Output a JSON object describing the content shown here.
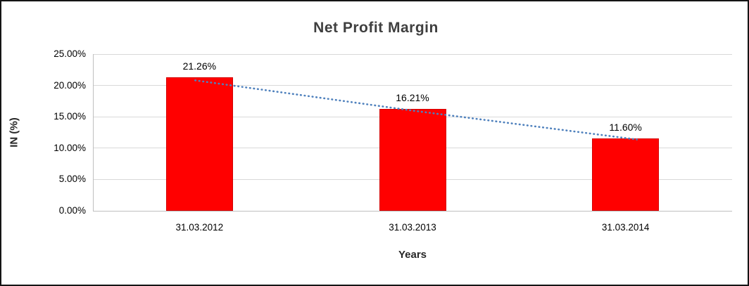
{
  "chart_data": {
    "type": "bar",
    "title": "Net Profit Margin",
    "xlabel": "Years",
    "ylabel": "IN (%)",
    "categories": [
      "31.03.2012",
      "31.03.2013",
      "31.03.2014"
    ],
    "values": [
      21.26,
      16.21,
      11.6
    ],
    "data_labels": [
      "21.26%",
      "16.21%",
      "11.60%"
    ],
    "ylim": [
      0,
      25
    ],
    "ytick_step": 5,
    "ytick_labels": [
      "0.00%",
      "5.00%",
      "10.00%",
      "15.00%",
      "20.00%",
      "25.00%"
    ],
    "grid": true,
    "legend": "none",
    "bar_color": "#ff0000",
    "trendline": {
      "type": "linear",
      "style": "dotted",
      "color": "#4f81bd"
    }
  }
}
